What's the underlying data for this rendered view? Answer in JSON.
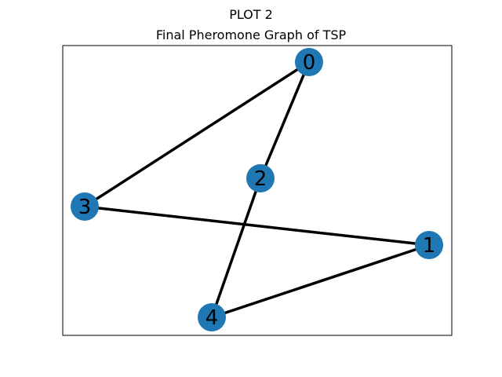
{
  "figure": {
    "suptitle": "PLOT 2",
    "title": "Final Pheromone Graph of TSP"
  },
  "graph": {
    "node_color": "#1f77b4",
    "edge_color": "#000000",
    "nodes": [
      {
        "id": "0",
        "label": "0"
      },
      {
        "id": "1",
        "label": "1"
      },
      {
        "id": "2",
        "label": "2"
      },
      {
        "id": "3",
        "label": "3"
      },
      {
        "id": "4",
        "label": "4"
      }
    ],
    "edges": [
      {
        "source": "0",
        "target": "3"
      },
      {
        "source": "0",
        "target": "2"
      },
      {
        "source": "2",
        "target": "4"
      },
      {
        "source": "4",
        "target": "1"
      },
      {
        "source": "1",
        "target": "3"
      }
    ]
  }
}
